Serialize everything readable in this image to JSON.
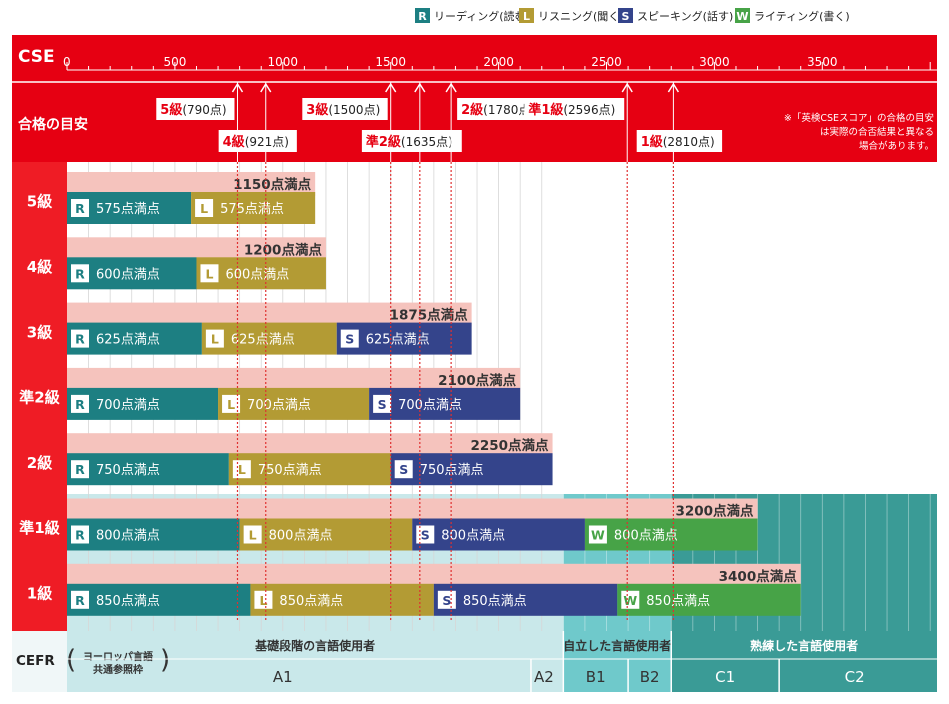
{
  "legend": [
    {
      "badge": "R",
      "label": "リーディング(読む)",
      "color": "#1d7f82"
    },
    {
      "badge": "L",
      "label": "リスニング(聞く)",
      "color": "#b39b34"
    },
    {
      "badge": "S",
      "label": "スピーキング(話す)",
      "color": "#34448b"
    },
    {
      "badge": "W",
      "label": "ライティング(書く)",
      "color": "#47a347"
    }
  ],
  "colors": {
    "header_red": "#e60012",
    "row_red": "#ef1c25",
    "total_bar": "#f5c3bd",
    "cefr_basic": "#c9e8ea",
    "cefr_independent": "#6fc9cb",
    "cefr_proficient": "#3a9b96"
  },
  "chart_data": {
    "type": "bar",
    "axis_label": "CSE",
    "xlim": [
      0,
      4000
    ],
    "xticks": [
      0,
      500,
      1000,
      1500,
      2000,
      2500,
      3000,
      3500
    ],
    "grid": "vertical every 100",
    "pass_row_label": "合格の目安",
    "pass_marks": [
      {
        "grade": "5級",
        "score_text": "(790点)",
        "value": 790,
        "row": "top"
      },
      {
        "grade": "4級",
        "score_text": "(921点)",
        "value": 921,
        "row": "bottom"
      },
      {
        "grade": "3級",
        "score_text": "(1500点)",
        "value": 1500,
        "row": "top"
      },
      {
        "grade": "準2級",
        "score_text": "(1635点)",
        "value": 1635,
        "row": "bottom"
      },
      {
        "grade": "2級",
        "score_text": "(1780点)",
        "value": 1780,
        "row": "top"
      },
      {
        "grade": "準1級",
        "score_text": "(2596点)",
        "value": 2596,
        "row": "top"
      },
      {
        "grade": "1級",
        "score_text": "(2810点)",
        "value": 2810,
        "row": "bottom"
      }
    ],
    "note": "※「英検CSEスコア」の合格の目安は実際の合否結果と異なる場合があります。",
    "grades": [
      {
        "name": "5級",
        "total": 1150,
        "total_label": "1150点満点",
        "skills": [
          {
            "badge": "R",
            "value": 575,
            "label": "575点満点"
          },
          {
            "badge": "L",
            "value": 575,
            "label": "575点満点"
          }
        ]
      },
      {
        "name": "4級",
        "total": 1200,
        "total_label": "1200点満点",
        "skills": [
          {
            "badge": "R",
            "value": 600,
            "label": "600点満点"
          },
          {
            "badge": "L",
            "value": 600,
            "label": "600点満点"
          }
        ]
      },
      {
        "name": "3級",
        "total": 1875,
        "total_label": "1875点満点",
        "skills": [
          {
            "badge": "R",
            "value": 625,
            "label": "625点満点"
          },
          {
            "badge": "L",
            "value": 625,
            "label": "625点満点"
          },
          {
            "badge": "S",
            "value": 625,
            "label": "625点満点"
          }
        ]
      },
      {
        "name": "準2級",
        "total": 2100,
        "total_label": "2100点満点",
        "skills": [
          {
            "badge": "R",
            "value": 700,
            "label": "700点満点"
          },
          {
            "badge": "L",
            "value": 700,
            "label": "700点満点"
          },
          {
            "badge": "S",
            "value": 700,
            "label": "700点満点"
          }
        ]
      },
      {
        "name": "2級",
        "total": 2250,
        "total_label": "2250点満点",
        "skills": [
          {
            "badge": "R",
            "value": 750,
            "label": "750点満点"
          },
          {
            "badge": "L",
            "value": 750,
            "label": "750点満点"
          },
          {
            "badge": "S",
            "value": 750,
            "label": "750点満点"
          }
        ]
      },
      {
        "name": "準1級",
        "total": 3200,
        "total_label": "3200点満点",
        "skills": [
          {
            "badge": "R",
            "value": 800,
            "label": "800点満点"
          },
          {
            "badge": "L",
            "value": 800,
            "label": "800点満点"
          },
          {
            "badge": "S",
            "value": 800,
            "label": "800点満点"
          },
          {
            "badge": "W",
            "value": 800,
            "label": "800点満点"
          }
        ]
      },
      {
        "name": "1級",
        "total": 3400,
        "total_label": "3400点満点",
        "skills": [
          {
            "badge": "R",
            "value": 850,
            "label": "850点満点"
          },
          {
            "badge": "L",
            "value": 850,
            "label": "850点満点"
          },
          {
            "badge": "S",
            "value": 850,
            "label": "850点満点"
          },
          {
            "badge": "W",
            "value": 850,
            "label": "850点満点"
          }
        ]
      }
    ]
  },
  "cefr": {
    "label": "CEFR",
    "sub_line1": "ヨーロッパ言語",
    "sub_line2": "共通参照枠",
    "groups": [
      {
        "name": "基礎段階の言語使用者",
        "from": 0,
        "to": 2300,
        "color": "#c9e8ea",
        "text_color": "#333333"
      },
      {
        "name": "自立した言語使用者",
        "from": 2300,
        "to": 2800,
        "color": "#6fc9cb",
        "text_color": "#333333"
      },
      {
        "name": "熟練した言語使用者",
        "from": 2800,
        "to": 4000,
        "color": "#3a9b96",
        "text_color": "#ffffff"
      }
    ],
    "levels": [
      {
        "name": "A1",
        "from": 0,
        "to": 2300,
        "center": 1000
      },
      {
        "name": "A2",
        "from": 2150,
        "to": 2300,
        "center": 2210
      },
      {
        "name": "B1",
        "from": 2300,
        "to": 2600,
        "center": 2450
      },
      {
        "name": "B2",
        "from": 2600,
        "to": 2800,
        "center": 2700
      },
      {
        "name": "C1",
        "from": 2800,
        "to": 3300,
        "center": 3050
      },
      {
        "name": "C2",
        "from": 3300,
        "to": 4000,
        "center": 3650
      }
    ]
  }
}
